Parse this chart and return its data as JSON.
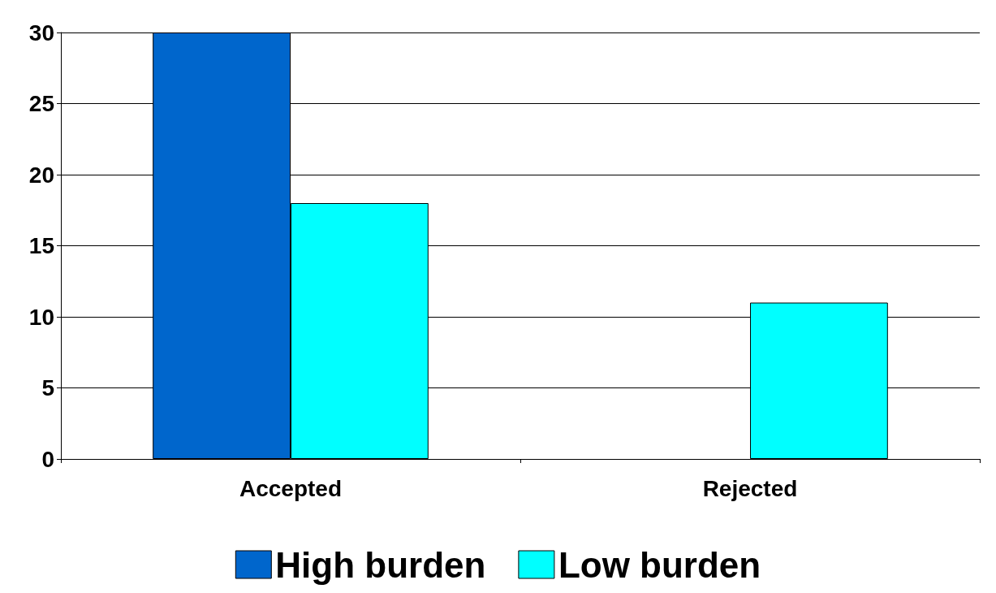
{
  "chart_data": {
    "type": "bar",
    "categories": [
      "Accepted",
      "Rejected"
    ],
    "series": [
      {
        "name": "High burden",
        "color": "#0066cc",
        "values": [
          30,
          0
        ]
      },
      {
        "name": "Low burden",
        "color": "#00ffff",
        "values": [
          18,
          11
        ]
      }
    ],
    "ylim": [
      0,
      30
    ],
    "yticks": [
      0,
      5,
      10,
      15,
      20,
      25,
      30
    ],
    "grid": "y",
    "legend": "bottom"
  }
}
